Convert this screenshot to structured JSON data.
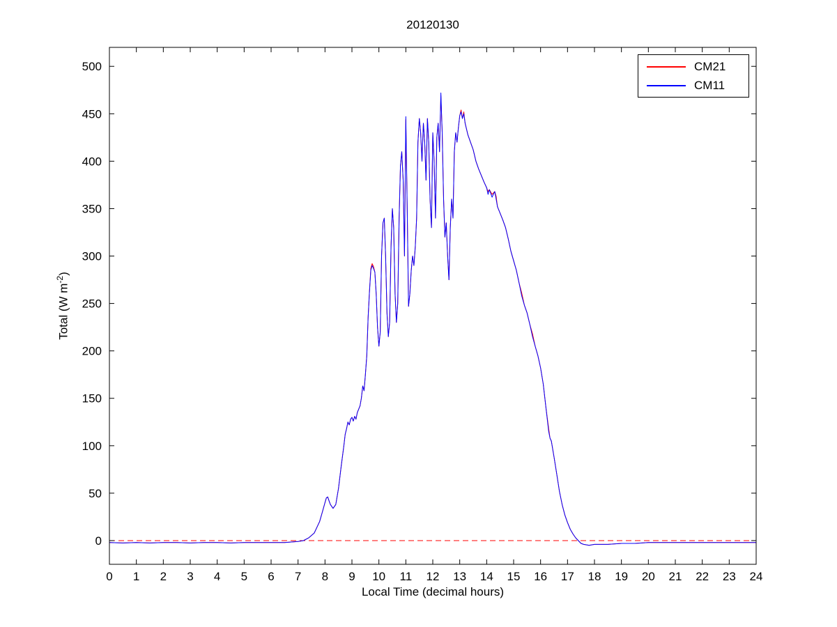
{
  "chart_data": {
    "type": "line",
    "title": "20120130",
    "xlabel": "Local Time (decimal hours)",
    "ylabel": "Total (W m-2)",
    "ylabel_prefix": "Total (W m",
    "ylabel_sup": "-2",
    "ylabel_suffix": ")",
    "xlim": [
      0,
      24
    ],
    "ylim": [
      -25,
      520
    ],
    "xticks": [
      0,
      1,
      2,
      3,
      4,
      5,
      6,
      7,
      8,
      9,
      10,
      11,
      12,
      13,
      14,
      15,
      16,
      17,
      18,
      19,
      20,
      21,
      22,
      23,
      24
    ],
    "yticks": [
      0,
      50,
      100,
      150,
      200,
      250,
      300,
      350,
      400,
      450,
      500
    ],
    "grid": false,
    "legend_position": "top-right",
    "axis_color": "#000000",
    "zero_line": {
      "y": 0,
      "color": "#ff0000",
      "style": "dashed"
    },
    "x": [
      0,
      0.5,
      1,
      1.5,
      2,
      2.5,
      3,
      3.5,
      4,
      4.5,
      5,
      5.5,
      6,
      6.5,
      7,
      7.2,
      7.4,
      7.6,
      7.8,
      7.9,
      8,
      8.05,
      8.1,
      8.15,
      8.2,
      8.3,
      8.4,
      8.5,
      8.6,
      8.7,
      8.75,
      8.8,
      8.85,
      8.9,
      8.95,
      9,
      9.05,
      9.1,
      9.15,
      9.2,
      9.3,
      9.35,
      9.4,
      9.45,
      9.5,
      9.55,
      9.6,
      9.65,
      9.7,
      9.75,
      9.8,
      9.85,
      9.9,
      9.95,
      10,
      10.05,
      10.1,
      10.15,
      10.2,
      10.25,
      10.3,
      10.35,
      10.4,
      10.45,
      10.5,
      10.55,
      10.6,
      10.65,
      10.7,
      10.75,
      10.8,
      10.85,
      10.9,
      10.95,
      11,
      11.05,
      11.1,
      11.15,
      11.2,
      11.25,
      11.3,
      11.35,
      11.4,
      11.45,
      11.5,
      11.55,
      11.6,
      11.65,
      11.7,
      11.75,
      11.8,
      11.85,
      11.9,
      11.95,
      12,
      12.05,
      12.1,
      12.15,
      12.2,
      12.25,
      12.3,
      12.35,
      12.4,
      12.45,
      12.5,
      12.55,
      12.6,
      12.65,
      12.7,
      12.75,
      12.8,
      12.85,
      12.9,
      12.95,
      13,
      13.05,
      13.1,
      13.15,
      13.2,
      13.3,
      13.4,
      13.5,
      13.6,
      13.7,
      13.8,
      13.9,
      14,
      14.05,
      14.1,
      14.2,
      14.3,
      14.35,
      14.4,
      14.5,
      14.6,
      14.7,
      14.8,
      14.9,
      15,
      15.1,
      15.2,
      15.3,
      15.4,
      15.5,
      15.6,
      15.7,
      15.8,
      15.9,
      16,
      16.1,
      16.2,
      16.3,
      16.35,
      16.4,
      16.5,
      16.6,
      16.7,
      16.8,
      16.9,
      17,
      17.1,
      17.2,
      17.3,
      17.4,
      17.5,
      17.6,
      17.8,
      18,
      18.5,
      19,
      19.5,
      20,
      20.5,
      21,
      21.5,
      22,
      22.5,
      23,
      23.5,
      24
    ],
    "series": [
      {
        "name": "CM21",
        "color": "#ff0000",
        "values": [
          -2,
          -2.5,
          -2,
          -2.5,
          -2,
          -2,
          -2.5,
          -2,
          -2,
          -2.5,
          -2,
          -2,
          -2,
          -2,
          -1,
          0,
          3,
          8,
          20,
          30,
          40,
          45,
          46,
          42,
          38,
          34,
          38,
          55,
          78,
          100,
          112,
          118,
          125,
          122,
          128,
          130,
          126,
          131,
          128,
          135,
          142,
          150,
          163,
          158,
          175,
          195,
          235,
          262,
          287,
          292,
          289,
          283,
          260,
          225,
          205,
          220,
          300,
          335,
          340,
          300,
          240,
          215,
          230,
          310,
          350,
          330,
          260,
          230,
          250,
          340,
          395,
          410,
          380,
          300,
          444,
          350,
          247,
          260,
          285,
          300,
          290,
          310,
          340,
          420,
          445,
          430,
          400,
          440,
          420,
          380,
          445,
          420,
          360,
          330,
          430,
          400,
          340,
          425,
          440,
          410,
          469,
          430,
          360,
          320,
          335,
          300,
          275,
          330,
          360,
          340,
          410,
          430,
          420,
          435,
          448,
          454,
          445,
          452,
          440,
          428,
          420,
          412,
          400,
          392,
          385,
          378,
          372,
          368,
          370,
          365,
          368,
          363,
          352,
          345,
          338,
          330,
          318,
          305,
          295,
          285,
          272,
          261,
          248,
          240,
          228,
          218,
          205,
          195,
          182,
          165,
          140,
          118,
          108,
          105,
          88,
          70,
          52,
          38,
          27,
          19,
          12,
          7,
          3,
          0,
          -3,
          -4,
          -5,
          -4,
          -4,
          -3,
          -3,
          -2,
          -2,
          -2,
          -2,
          -2,
          -2,
          -2,
          -2,
          -2
        ]
      },
      {
        "name": "CM11",
        "color": "#0000ff",
        "values": [
          -2,
          -2.5,
          -2,
          -2.5,
          -2,
          -2,
          -2.5,
          -2,
          -2,
          -2.5,
          -2,
          -2,
          -2,
          -2,
          -1,
          0,
          3,
          8,
          20,
          30,
          40,
          45,
          46,
          42,
          38,
          34,
          38,
          55,
          78,
          100,
          112,
          118,
          125,
          122,
          128,
          130,
          126,
          131,
          128,
          135,
          142,
          150,
          163,
          158,
          175,
          195,
          235,
          262,
          285,
          290,
          287,
          283,
          260,
          225,
          205,
          220,
          300,
          335,
          340,
          300,
          240,
          215,
          230,
          310,
          350,
          330,
          260,
          230,
          250,
          340,
          395,
          410,
          380,
          300,
          447,
          350,
          247,
          260,
          285,
          300,
          290,
          310,
          340,
          420,
          445,
          430,
          400,
          440,
          420,
          380,
          445,
          420,
          360,
          330,
          430,
          400,
          340,
          425,
          440,
          410,
          472,
          430,
          360,
          320,
          335,
          300,
          275,
          330,
          360,
          340,
          410,
          430,
          420,
          435,
          448,
          452,
          445,
          450,
          440,
          428,
          420,
          412,
          400,
          392,
          385,
          378,
          372,
          365,
          370,
          362,
          368,
          360,
          352,
          345,
          338,
          330,
          318,
          305,
          295,
          285,
          272,
          258,
          248,
          240,
          228,
          215,
          205,
          195,
          182,
          165,
          140,
          115,
          108,
          105,
          88,
          70,
          52,
          38,
          27,
          19,
          12,
          7,
          3,
          0,
          -3,
          -4,
          -5,
          -4,
          -4,
          -3,
          -3,
          -2,
          -2,
          -2,
          -2,
          -2,
          -2,
          -2,
          -2,
          -2
        ]
      }
    ]
  }
}
